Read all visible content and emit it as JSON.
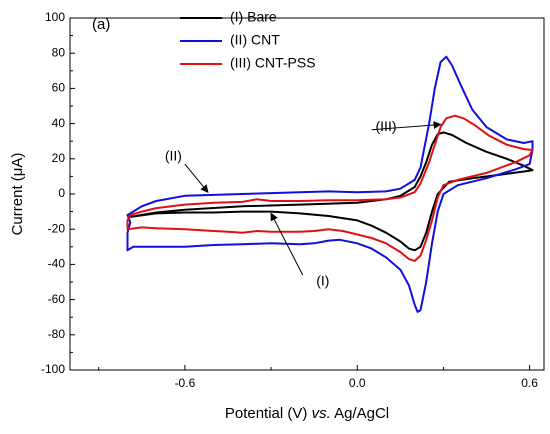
{
  "chart_data": {
    "type": "line",
    "panel_label": "(a)",
    "xlabel_parts": [
      "Potential (V) ",
      "vs.",
      " Ag/AgCl"
    ],
    "ylabel": "Current (μA)",
    "xlim": [
      -1.0,
      0.65
    ],
    "ylim": [
      -100,
      100
    ],
    "xticks": [
      -0.6,
      0.0,
      0.6
    ],
    "xtick_labels": [
      "-0.6",
      "0.0",
      "0.6"
    ],
    "yticks": [
      -100,
      -80,
      -60,
      -40,
      -20,
      0,
      20,
      40,
      60,
      80,
      100
    ],
    "ytick_labels": [
      "-100",
      "-80",
      "-60",
      "-40",
      "-20",
      "0",
      "20",
      "40",
      "60",
      "80",
      "100"
    ],
    "grid": false,
    "legend_position": "top-center",
    "series": [
      {
        "name": "(I) Bare",
        "color": "#000000",
        "points": [
          [
            -0.79,
            -13
          ],
          [
            -0.7,
            -11
          ],
          [
            -0.6,
            -10.5
          ],
          [
            -0.5,
            -10.5
          ],
          [
            -0.4,
            -10
          ],
          [
            -0.3,
            -10
          ],
          [
            -0.2,
            -11
          ],
          [
            -0.1,
            -12.5
          ],
          [
            0.0,
            -15
          ],
          [
            0.05,
            -18
          ],
          [
            0.1,
            -22
          ],
          [
            0.15,
            -27
          ],
          [
            0.18,
            -31
          ],
          [
            0.2,
            -32
          ],
          [
            0.22,
            -30
          ],
          [
            0.24,
            -22
          ],
          [
            0.26,
            -10
          ],
          [
            0.28,
            0
          ],
          [
            0.32,
            7
          ],
          [
            0.4,
            9
          ],
          [
            0.5,
            11
          ],
          [
            0.59,
            13
          ],
          [
            0.61,
            13.5
          ],
          [
            0.58,
            16
          ],
          [
            0.52,
            20
          ],
          [
            0.45,
            24
          ],
          [
            0.38,
            29
          ],
          [
            0.33,
            33.5
          ],
          [
            0.3,
            35
          ],
          [
            0.28,
            34
          ],
          [
            0.26,
            28
          ],
          [
            0.24,
            18
          ],
          [
            0.22,
            10
          ],
          [
            0.2,
            4
          ],
          [
            0.15,
            -1
          ],
          [
            0.1,
            -3
          ],
          [
            0.0,
            -5
          ],
          [
            -0.2,
            -6
          ],
          [
            -0.4,
            -7
          ],
          [
            -0.6,
            -9
          ],
          [
            -0.7,
            -10.5
          ],
          [
            -0.79,
            -13
          ]
        ]
      },
      {
        "name": "(II) CNT",
        "color": "#1010dd",
        "points": [
          [
            -0.8,
            -32
          ],
          [
            -0.78,
            -30
          ],
          [
            -0.7,
            -30
          ],
          [
            -0.6,
            -30
          ],
          [
            -0.5,
            -29
          ],
          [
            -0.4,
            -28.5
          ],
          [
            -0.3,
            -28
          ],
          [
            -0.2,
            -28.5
          ],
          [
            -0.15,
            -28
          ],
          [
            -0.1,
            -26.5
          ],
          [
            -0.06,
            -26
          ],
          [
            0.0,
            -28
          ],
          [
            0.05,
            -31
          ],
          [
            0.1,
            -36
          ],
          [
            0.15,
            -43
          ],
          [
            0.18,
            -52
          ],
          [
            0.2,
            -63
          ],
          [
            0.21,
            -67
          ],
          [
            0.22,
            -66
          ],
          [
            0.24,
            -50
          ],
          [
            0.26,
            -28
          ],
          [
            0.28,
            -10
          ],
          [
            0.3,
            0
          ],
          [
            0.35,
            5
          ],
          [
            0.45,
            9
          ],
          [
            0.55,
            14
          ],
          [
            0.6,
            17
          ],
          [
            0.61,
            25
          ],
          [
            0.61,
            30
          ],
          [
            0.58,
            29
          ],
          [
            0.52,
            31
          ],
          [
            0.45,
            38
          ],
          [
            0.4,
            48
          ],
          [
            0.36,
            62
          ],
          [
            0.33,
            73
          ],
          [
            0.31,
            78
          ],
          [
            0.29,
            75
          ],
          [
            0.27,
            60
          ],
          [
            0.25,
            40
          ],
          [
            0.22,
            15
          ],
          [
            0.2,
            8
          ],
          [
            0.15,
            3
          ],
          [
            0.1,
            1.5
          ],
          [
            0.0,
            1
          ],
          [
            -0.1,
            1.5
          ],
          [
            -0.2,
            1
          ],
          [
            -0.3,
            0.5
          ],
          [
            -0.4,
            0
          ],
          [
            -0.5,
            -0.5
          ],
          [
            -0.6,
            -1
          ],
          [
            -0.7,
            -4
          ],
          [
            -0.75,
            -7
          ],
          [
            -0.78,
            -10
          ],
          [
            -0.8,
            -12
          ],
          [
            -0.79,
            -16
          ],
          [
            -0.8,
            -22
          ],
          [
            -0.8,
            -32
          ]
        ]
      },
      {
        "name": "(III) CNT-PSS",
        "color": "#e01010",
        "points": [
          [
            -0.8,
            -20
          ],
          [
            -0.75,
            -19
          ],
          [
            -0.7,
            -19.5
          ],
          [
            -0.6,
            -20
          ],
          [
            -0.5,
            -21
          ],
          [
            -0.45,
            -21.5
          ],
          [
            -0.4,
            -22
          ],
          [
            -0.35,
            -21
          ],
          [
            -0.3,
            -21.5
          ],
          [
            -0.2,
            -21.5
          ],
          [
            -0.15,
            -21
          ],
          [
            -0.1,
            -20
          ],
          [
            -0.05,
            -21
          ],
          [
            0.0,
            -23
          ],
          [
            0.05,
            -25
          ],
          [
            0.1,
            -28
          ],
          [
            0.15,
            -33
          ],
          [
            0.18,
            -37
          ],
          [
            0.2,
            -38
          ],
          [
            0.22,
            -35
          ],
          [
            0.24,
            -26
          ],
          [
            0.26,
            -15
          ],
          [
            0.28,
            -2
          ],
          [
            0.3,
            5
          ],
          [
            0.35,
            8
          ],
          [
            0.45,
            12
          ],
          [
            0.55,
            18
          ],
          [
            0.6,
            22
          ],
          [
            0.61,
            25
          ],
          [
            0.58,
            25.5
          ],
          [
            0.52,
            28
          ],
          [
            0.46,
            33
          ],
          [
            0.41,
            39
          ],
          [
            0.37,
            43
          ],
          [
            0.34,
            44.5
          ],
          [
            0.31,
            43
          ],
          [
            0.29,
            38
          ],
          [
            0.27,
            28
          ],
          [
            0.25,
            18
          ],
          [
            0.22,
            6
          ],
          [
            0.2,
            1
          ],
          [
            0.15,
            -2
          ],
          [
            0.1,
            -3
          ],
          [
            0.0,
            -3.5
          ],
          [
            -0.1,
            -3.5
          ],
          [
            -0.2,
            -4
          ],
          [
            -0.3,
            -4
          ],
          [
            -0.35,
            -3
          ],
          [
            -0.4,
            -4.5
          ],
          [
            -0.5,
            -5
          ],
          [
            -0.6,
            -6
          ],
          [
            -0.7,
            -8
          ],
          [
            -0.75,
            -10
          ],
          [
            -0.79,
            -12
          ],
          [
            -0.8,
            -15
          ],
          [
            -0.8,
            -20
          ]
        ]
      }
    ],
    "annotations": [
      {
        "text": "(I)",
        "text_pos": [
          -0.12,
          -50
        ],
        "arrow_from": [
          -0.19,
          -46
        ],
        "arrow_to": [
          -0.3,
          -11
        ]
      },
      {
        "text": "(II)",
        "text_pos": [
          -0.64,
          21
        ],
        "arrow_from": [
          -0.6,
          17
        ],
        "arrow_to": [
          -0.52,
          1
        ]
      },
      {
        "text": "(III)",
        "text_pos": [
          0.1,
          38
        ],
        "arrow_from": [
          0.05,
          36.5
        ],
        "arrow_to": [
          0.29,
          39.5
        ]
      }
    ]
  }
}
